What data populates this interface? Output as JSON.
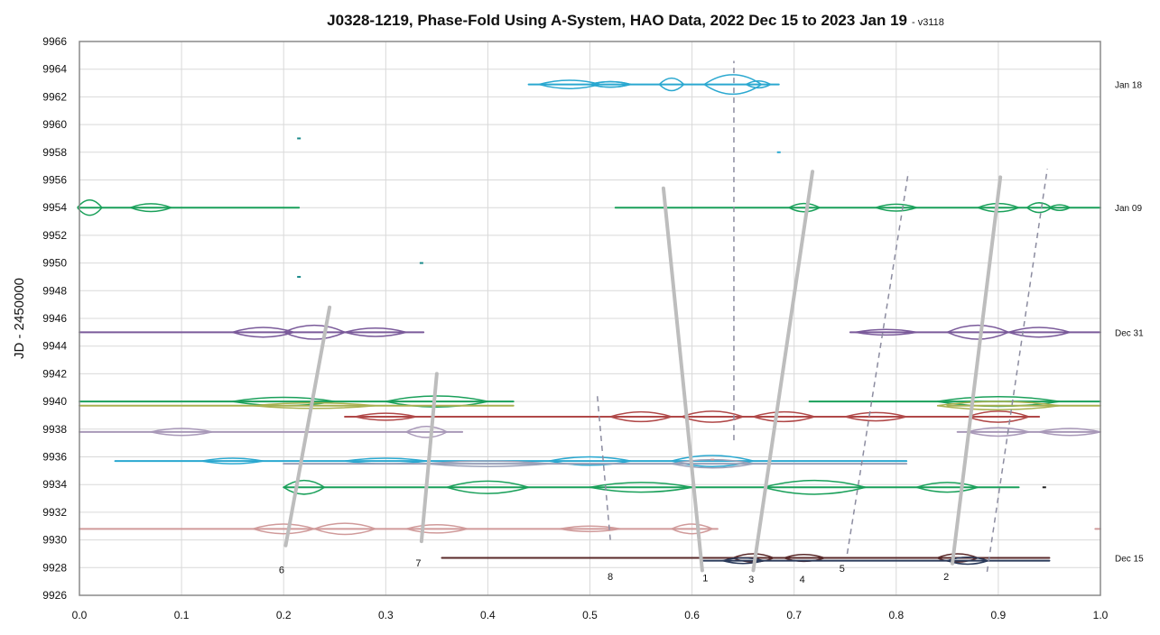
{
  "chart_data": {
    "type": "line",
    "title": "J0328-1219, Phase-Fold Using A-System, HAO Data, 2022 Dec 15 to 2023 Jan 19",
    "subtitle": "- v3118",
    "xlabel": "",
    "ylabel": "JD - 2450000",
    "xlim": [
      0.0,
      1.0
    ],
    "ylim": [
      9926,
      9966
    ],
    "x_ticks": [
      "0.0",
      "0.1",
      "0.2",
      "0.3",
      "0.4",
      "0.5",
      "0.6",
      "0.7",
      "0.8",
      "0.9",
      "1.0"
    ],
    "y_ticks": [
      "9926",
      "9928",
      "9930",
      "9932",
      "9934",
      "9936",
      "9938",
      "9940",
      "9942",
      "9944",
      "9946",
      "9948",
      "9950",
      "9952",
      "9954",
      "9956",
      "9958",
      "9960",
      "9962",
      "9964",
      "9966"
    ],
    "grid": true,
    "side_labels": [
      {
        "text": "Jan 18",
        "y": 9962.9
      },
      {
        "text": "Jan 09",
        "y": 9954.0
      },
      {
        "text": "Dec 31",
        "y": 9945.0
      },
      {
        "text": "Dec 15",
        "y": 9928.7
      }
    ],
    "traces": [
      {
        "color": "#2aa8d0",
        "y": 9962.9,
        "segments": [
          [
            0.44,
            0.685
          ]
        ],
        "bulges": [
          [
            0.48,
            0.03,
            0.3
          ],
          [
            0.52,
            0.02,
            0.2
          ],
          [
            0.52,
            0.02,
            0.2
          ],
          [
            0.58,
            0.012,
            0.45
          ],
          [
            0.64,
            0.028,
            0.7
          ],
          [
            0.665,
            0.012,
            0.25
          ]
        ]
      },
      {
        "color": "#1aa05a",
        "y": 9954.0,
        "segments": [
          [
            0.0,
            0.215
          ],
          [
            0.525,
            1.0
          ]
        ],
        "bulges": [
          [
            0.01,
            0.012,
            0.55
          ],
          [
            0.07,
            0.02,
            0.28
          ],
          [
            0.71,
            0.015,
            0.3
          ],
          [
            0.8,
            0.02,
            0.25
          ],
          [
            0.9,
            0.02,
            0.3
          ],
          [
            0.94,
            0.012,
            0.35
          ],
          [
            0.96,
            0.01,
            0.2
          ]
        ]
      },
      {
        "color": "#7a5a9a",
        "y": 9945.0,
        "segments": [
          [
            0.0,
            0.337
          ],
          [
            0.755,
            1.0
          ]
        ],
        "bulges": [
          [
            0.18,
            0.03,
            0.35
          ],
          [
            0.23,
            0.03,
            0.5
          ],
          [
            0.29,
            0.03,
            0.3
          ],
          [
            0.79,
            0.03,
            0.2
          ],
          [
            0.88,
            0.03,
            0.5
          ],
          [
            0.94,
            0.03,
            0.35
          ]
        ]
      },
      {
        "color": "#1aa05a",
        "y": 9940.0,
        "segments": [
          [
            0.0,
            0.425
          ],
          [
            0.715,
            1.0
          ]
        ],
        "bulges": [
          [
            0.2,
            0.05,
            0.3
          ],
          [
            0.35,
            0.05,
            0.4
          ],
          [
            0.9,
            0.06,
            0.35
          ]
        ]
      },
      {
        "color": "#a8b050",
        "y": 9939.7,
        "segments": [
          [
            0.0,
            0.425
          ],
          [
            0.85,
            1.0
          ]
        ],
        "bulges": [
          [
            0.23,
            0.06,
            0.2
          ],
          [
            0.9,
            0.06,
            0.3
          ]
        ]
      },
      {
        "color": "#b04848",
        "y": 9938.9,
        "segments": [
          [
            0.26,
            0.94
          ]
        ],
        "bulges": [
          [
            0.3,
            0.03,
            0.25
          ],
          [
            0.55,
            0.03,
            0.35
          ],
          [
            0.62,
            0.03,
            0.4
          ],
          [
            0.69,
            0.03,
            0.35
          ],
          [
            0.78,
            0.03,
            0.3
          ],
          [
            0.9,
            0.03,
            0.4
          ]
        ]
      },
      {
        "color": "#a898b8",
        "y": 9937.8,
        "segments": [
          [
            0.0,
            0.375
          ],
          [
            0.86,
            1.0
          ]
        ],
        "bulges": [
          [
            0.1,
            0.03,
            0.25
          ],
          [
            0.34,
            0.02,
            0.4
          ],
          [
            0.9,
            0.03,
            0.3
          ],
          [
            0.97,
            0.03,
            0.25
          ]
        ]
      },
      {
        "color": "#2aa8d0",
        "y": 9935.7,
        "segments": [
          [
            0.035,
            0.81
          ]
        ],
        "bulges": [
          [
            0.15,
            0.03,
            0.2
          ],
          [
            0.3,
            0.04,
            0.2
          ],
          [
            0.5,
            0.04,
            0.3
          ],
          [
            0.62,
            0.04,
            0.4
          ]
        ]
      },
      {
        "color": "#9aa0b8",
        "y": 9935.5,
        "segments": [
          [
            0.2,
            0.81
          ]
        ],
        "bulges": [
          [
            0.4,
            0.06,
            0.2
          ],
          [
            0.62,
            0.04,
            0.3
          ]
        ]
      },
      {
        "color": "#1aa05a",
        "y": 9933.8,
        "segments": [
          [
            0.2,
            0.92
          ]
        ],
        "bulges": [
          [
            0.22,
            0.02,
            0.5
          ],
          [
            0.4,
            0.04,
            0.45
          ],
          [
            0.55,
            0.05,
            0.35
          ],
          [
            0.72,
            0.05,
            0.5
          ],
          [
            0.85,
            0.03,
            0.35
          ]
        ]
      },
      {
        "color": "#d09a9a",
        "y": 9930.8,
        "segments": [
          [
            0.0,
            0.625
          ],
          [
            0.995,
            1.0
          ]
        ],
        "bulges": [
          [
            0.2,
            0.03,
            0.35
          ],
          [
            0.26,
            0.03,
            0.4
          ],
          [
            0.35,
            0.03,
            0.3
          ],
          [
            0.5,
            0.03,
            0.2
          ],
          [
            0.6,
            0.02,
            0.35
          ]
        ]
      },
      {
        "color": "#5a2a2a",
        "y": 9928.7,
        "segments": [
          [
            0.355,
            0.95
          ]
        ],
        "bulges": [
          [
            0.66,
            0.02,
            0.3
          ],
          [
            0.71,
            0.02,
            0.25
          ],
          [
            0.86,
            0.02,
            0.3
          ]
        ]
      },
      {
        "color": "#2a3a5a",
        "y": 9928.5,
        "segments": [
          [
            0.61,
            0.95
          ]
        ],
        "bulges": [
          [
            0.65,
            0.02,
            0.2
          ],
          [
            0.87,
            0.02,
            0.25
          ]
        ]
      }
    ],
    "dots": [
      {
        "x": 0.215,
        "y": 9959.0,
        "color": "#1a8a8a"
      },
      {
        "x": 0.685,
        "y": 9958.0,
        "color": "#2aa8d0"
      },
      {
        "x": 0.335,
        "y": 9950.0,
        "color": "#1a8a8a"
      },
      {
        "x": 0.215,
        "y": 9949.0,
        "color": "#1a8a8a"
      },
      {
        "x": 0.62,
        "y": 9935.8,
        "color": "#d09a9a"
      },
      {
        "x": 0.945,
        "y": 9933.8,
        "color": "#222222"
      }
    ],
    "solid_guides": [
      {
        "label": "6",
        "from": [
          0.202,
          9929.6
        ],
        "to": [
          0.245,
          9946.8
        ],
        "label_at": [
          0.198,
          9927.6
        ]
      },
      {
        "label": "7",
        "from": [
          0.335,
          9929.9
        ],
        "to": [
          0.35,
          9942.0
        ],
        "label_at": [
          0.332,
          9928.1
        ]
      },
      {
        "label": "1",
        "from": [
          0.61,
          9927.8
        ],
        "to": [
          0.572,
          9955.4
        ],
        "label_at": [
          0.613,
          9927.0
        ]
      },
      {
        "label": "3",
        "from": [
          0.66,
          9927.8
        ],
        "to": [
          0.718,
          9956.6
        ],
        "label_at": [
          0.658,
          9926.9
        ]
      },
      {
        "label": "2",
        "from": [
          0.855,
          9928.3
        ],
        "to": [
          0.902,
          9956.2
        ],
        "label_at": [
          0.849,
          9927.1
        ]
      }
    ],
    "dashed_guides": [
      {
        "label": "8",
        "from": [
          0.52,
          9930.0
        ],
        "to": [
          0.507,
          9940.6
        ],
        "label_at": [
          0.52,
          9927.1
        ]
      },
      {
        "label": "",
        "from": [
          0.641,
          9937.2
        ],
        "to": [
          0.641,
          9964.6
        ],
        "label_at": null
      },
      {
        "label": "4",
        "from": [
          0.69,
          9927.8
        ],
        "to": [
          0.69,
          9927.8
        ],
        "label_at": [
          0.708,
          9926.9
        ]
      },
      {
        "label": "5",
        "from": [
          0.752,
          9929.0
        ],
        "to": [
          0.812,
          9956.6
        ],
        "label_at": [
          0.747,
          9927.7
        ]
      },
      {
        "label": "",
        "from": [
          0.889,
          9927.7
        ],
        "to": [
          0.948,
          9956.8
        ],
        "label_at": null
      }
    ]
  }
}
